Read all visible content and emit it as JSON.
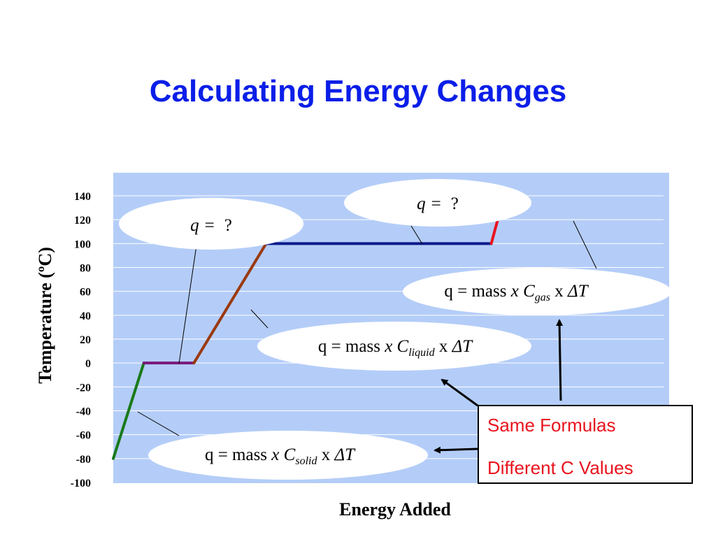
{
  "slide": {
    "title": "Calculating Energy Changes"
  },
  "chart_data": {
    "type": "line",
    "title": "",
    "xlabel": "Energy Added",
    "ylabel": "Temperature (ºC)",
    "ylim": [
      -100,
      140
    ],
    "yticks": [
      "140",
      "120",
      "100",
      "80",
      "60",
      "40",
      "20",
      "0",
      "-20",
      "-40",
      "-60",
      "-80",
      "-100"
    ],
    "grid": true,
    "background": "#b4cdf8",
    "series": [
      {
        "color": "#1a7a1a",
        "x": [
          0,
          5.5
        ],
        "y": [
          -80,
          0
        ]
      },
      {
        "color": "#7a1a7a",
        "x": [
          5.5,
          14.5
        ],
        "y": [
          0,
          0
        ]
      },
      {
        "color": "#9a3a10",
        "x": [
          14.5,
          27.5
        ],
        "y": [
          0,
          100
        ]
      },
      {
        "color": "#0a1a8a",
        "x": [
          27.5,
          68
        ],
        "y": [
          100,
          100
        ]
      },
      {
        "color": "#e8141e",
        "x": [
          68,
          70.5
        ],
        "y": [
          100,
          143
        ]
      }
    ]
  },
  "annotations": {
    "q_melt": {
      "q": "q",
      "eq": "=",
      "value": "?"
    },
    "q_boil": {
      "q": "q",
      "eq": "=",
      "value": "?"
    },
    "gas": {
      "prefix": "q =  mass ",
      "x1": "x",
      "c": "C",
      "sub": "gas",
      "x2": " x ",
      "dt": "ΔT"
    },
    "liquid": {
      "prefix": "q =  mass ",
      "x1": "x",
      "c": "C",
      "sub": "liquid",
      "x2": " x ",
      "dt": "ΔT"
    },
    "solid": {
      "prefix": "q =  mass ",
      "x1": "x",
      "c": "C",
      "sub": "solid",
      "x2": " x ",
      "dt": "ΔT"
    }
  },
  "callout": {
    "line1": "Same Formulas",
    "line2": "Different C Values"
  },
  "colors": {
    "title": "#0a1ee8",
    "callout_text": "#e8141e"
  }
}
